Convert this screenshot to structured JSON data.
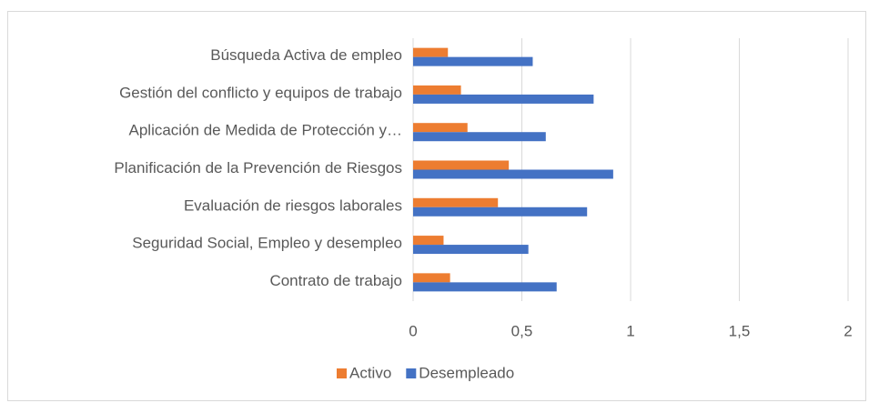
{
  "chart_data": {
    "type": "bar",
    "orientation": "horizontal",
    "categories": [
      "Búsqueda Activa de empleo",
      "Gestión del conflicto y equipos de trabajo",
      "Aplicación de Medida de Protección y…",
      "Planificación de la Prevención de Riesgos",
      "Evaluación de riesgos laborales",
      "Seguridad Social, Empleo y desempleo",
      "Contrato de trabajo"
    ],
    "series": [
      {
        "name": "Activo",
        "color": "#ed7d31",
        "values": [
          0.16,
          0.22,
          0.25,
          0.44,
          0.39,
          0.14,
          0.17
        ]
      },
      {
        "name": "Desempleado",
        "color": "#4472c4",
        "values": [
          0.55,
          0.83,
          0.61,
          0.92,
          0.8,
          0.53,
          0.66
        ]
      }
    ],
    "xlim": [
      0,
      2
    ],
    "xticks": [
      0,
      {
        "value": 0.5,
        "label": "0,5"
      },
      1,
      {
        "value": 1.5,
        "label": "1,5"
      },
      2
    ],
    "grid": true,
    "legend": "bottom"
  }
}
